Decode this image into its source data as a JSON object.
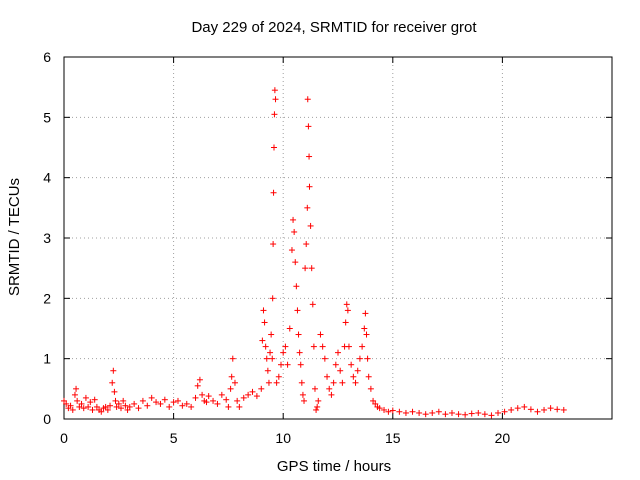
{
  "chart_data": {
    "type": "scatter",
    "title": "Day 229 of 2024, SRMTID for receiver grot",
    "xlabel": "GPS time / hours",
    "ylabel": "SRMTID / TECUs",
    "xlim": [
      0,
      25
    ],
    "ylim": [
      0,
      6
    ],
    "xticks": [
      0,
      5,
      10,
      15,
      20
    ],
    "yticks": [
      0,
      1,
      2,
      3,
      4,
      5,
      6
    ],
    "grid": true,
    "marker": "+",
    "colors": {
      "series": "#ff0000",
      "grid": "#a0a0a0",
      "axis": "#000000"
    },
    "series": [
      {
        "name": "grot",
        "x": [
          0.0,
          0.1,
          0.2,
          0.3,
          0.4,
          0.5,
          0.55,
          0.6,
          0.7,
          0.8,
          0.9,
          1.0,
          1.1,
          1.2,
          1.3,
          1.4,
          1.5,
          1.6,
          1.7,
          1.8,
          1.9,
          2.0,
          2.1,
          2.2,
          2.25,
          2.3,
          2.35,
          2.4,
          2.5,
          2.6,
          2.7,
          2.8,
          2.9,
          3.0,
          3.2,
          3.4,
          3.6,
          3.8,
          4.0,
          4.2,
          4.4,
          4.6,
          4.8,
          5.0,
          5.2,
          5.4,
          5.6,
          5.8,
          6.0,
          6.1,
          6.2,
          6.3,
          6.4,
          6.5,
          6.6,
          6.8,
          7.0,
          7.2,
          7.4,
          7.5,
          7.6,
          7.65,
          7.7,
          7.8,
          7.9,
          8.0,
          8.2,
          8.4,
          8.6,
          8.8,
          9.0,
          9.05,
          9.1,
          9.15,
          9.2,
          9.25,
          9.3,
          9.35,
          9.4,
          9.45,
          9.5,
          9.52,
          9.54,
          9.56,
          9.58,
          9.6,
          9.62,
          9.65,
          9.7,
          9.8,
          9.9,
          10.0,
          10.1,
          10.2,
          10.3,
          10.4,
          10.45,
          10.5,
          10.55,
          10.6,
          10.65,
          10.7,
          10.75,
          10.8,
          10.85,
          10.9,
          10.95,
          11.0,
          11.05,
          11.1,
          11.12,
          11.15,
          11.18,
          11.2,
          11.25,
          11.3,
          11.35,
          11.4,
          11.45,
          11.5,
          11.55,
          11.6,
          11.7,
          11.8,
          11.9,
          12.0,
          12.1,
          12.2,
          12.3,
          12.4,
          12.5,
          12.6,
          12.7,
          12.8,
          12.85,
          12.9,
          12.95,
          13.0,
          13.1,
          13.2,
          13.3,
          13.4,
          13.5,
          13.6,
          13.7,
          13.75,
          13.8,
          13.85,
          13.9,
          14.0,
          14.1,
          14.2,
          14.3,
          14.4,
          14.6,
          14.8,
          15.0,
          15.3,
          15.6,
          15.9,
          16.2,
          16.5,
          16.8,
          17.1,
          17.4,
          17.7,
          18.0,
          18.3,
          18.6,
          18.9,
          19.2,
          19.5,
          19.8,
          20.1,
          20.4,
          20.7,
          21.0,
          21.3,
          21.6,
          21.9,
          22.2,
          22.5,
          22.8
        ],
        "y": [
          0.3,
          0.25,
          0.18,
          0.22,
          0.15,
          0.4,
          0.5,
          0.3,
          0.2,
          0.25,
          0.18,
          0.35,
          0.2,
          0.28,
          0.15,
          0.32,
          0.2,
          0.15,
          0.12,
          0.18,
          0.2,
          0.15,
          0.22,
          0.6,
          0.8,
          0.45,
          0.3,
          0.2,
          0.25,
          0.18,
          0.3,
          0.22,
          0.15,
          0.2,
          0.25,
          0.18,
          0.3,
          0.22,
          0.35,
          0.28,
          0.25,
          0.32,
          0.2,
          0.28,
          0.3,
          0.22,
          0.25,
          0.2,
          0.35,
          0.55,
          0.65,
          0.4,
          0.3,
          0.28,
          0.38,
          0.3,
          0.25,
          0.4,
          0.32,
          0.2,
          0.5,
          0.7,
          1.0,
          0.6,
          0.3,
          0.2,
          0.35,
          0.4,
          0.45,
          0.38,
          0.5,
          1.3,
          1.8,
          1.6,
          1.2,
          1.0,
          0.8,
          0.6,
          1.1,
          1.4,
          1.0,
          2.0,
          2.9,
          3.75,
          4.5,
          5.05,
          5.45,
          5.3,
          0.6,
          0.7,
          0.9,
          1.1,
          1.2,
          0.9,
          1.5,
          2.8,
          3.3,
          3.1,
          2.6,
          2.2,
          1.8,
          1.4,
          1.1,
          0.9,
          0.6,
          0.4,
          0.3,
          2.5,
          2.9,
          3.5,
          5.3,
          4.85,
          4.35,
          3.85,
          3.2,
          2.5,
          1.9,
          1.2,
          0.5,
          0.15,
          0.2,
          0.3,
          1.4,
          1.2,
          1.0,
          0.7,
          0.5,
          0.4,
          0.6,
          0.9,
          1.1,
          0.8,
          0.6,
          1.2,
          1.6,
          1.9,
          1.8,
          1.2,
          0.9,
          0.7,
          0.6,
          0.8,
          1.0,
          1.2,
          1.5,
          1.75,
          1.4,
          1.0,
          0.7,
          0.5,
          0.3,
          0.25,
          0.2,
          0.18,
          0.15,
          0.12,
          0.14,
          0.12,
          0.1,
          0.12,
          0.1,
          0.08,
          0.1,
          0.12,
          0.08,
          0.1,
          0.08,
          0.07,
          0.09,
          0.1,
          0.08,
          0.06,
          0.1,
          0.12,
          0.15,
          0.18,
          0.2,
          0.16,
          0.12,
          0.15,
          0.18,
          0.16,
          0.15
        ]
      }
    ]
  }
}
